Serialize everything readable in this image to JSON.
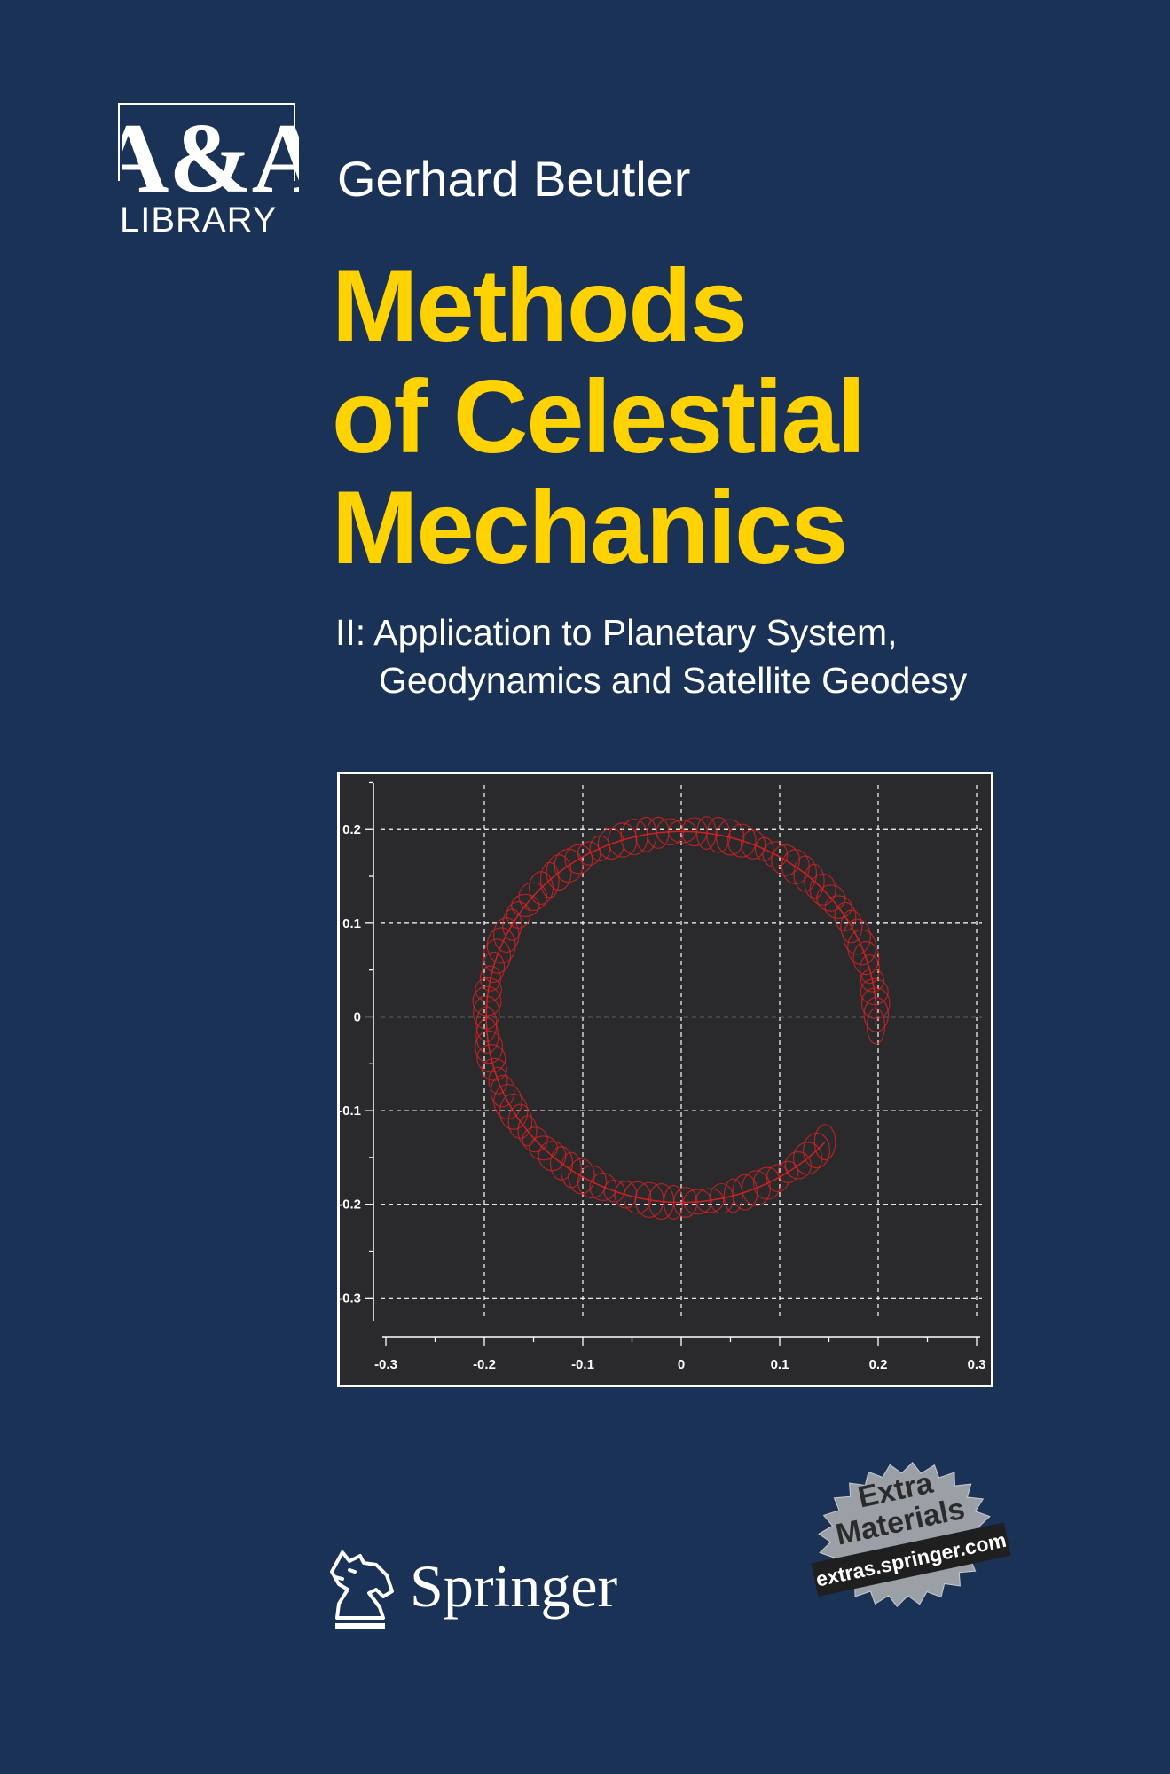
{
  "series": {
    "logo_text": "A&A",
    "library": "LIBRARY"
  },
  "author": "Gerhard Beutler",
  "title": {
    "lines": [
      "Methods",
      "of Celestial",
      "Mechanics"
    ]
  },
  "subtitle": {
    "line1": "II: Application to Planetary System,",
    "line2": "Geodynamics and Satellite Geodesy"
  },
  "figure": {
    "x_ticks": [
      "-0.3",
      "-0.2",
      "-0.1",
      "0",
      "0.1",
      "0.2",
      "0.3"
    ],
    "y_ticks": [
      "0.2",
      "0.1",
      "0",
      "-0.1",
      "-0.2",
      "-0.3"
    ],
    "xlim": [
      -0.3,
      0.3
    ],
    "ylim": [
      -0.3,
      0.2
    ],
    "grid": true,
    "curve_color": "#e02020",
    "background": "#2a2a2c"
  },
  "publisher": {
    "name": "Springer",
    "icon": "springer-knight-icon"
  },
  "badge": {
    "line1": "Extra",
    "line2": "Materials",
    "url": "extras.springer.com"
  },
  "colors": {
    "background": "#1b3257",
    "title": "#ffd200",
    "text": "#ffffff"
  }
}
